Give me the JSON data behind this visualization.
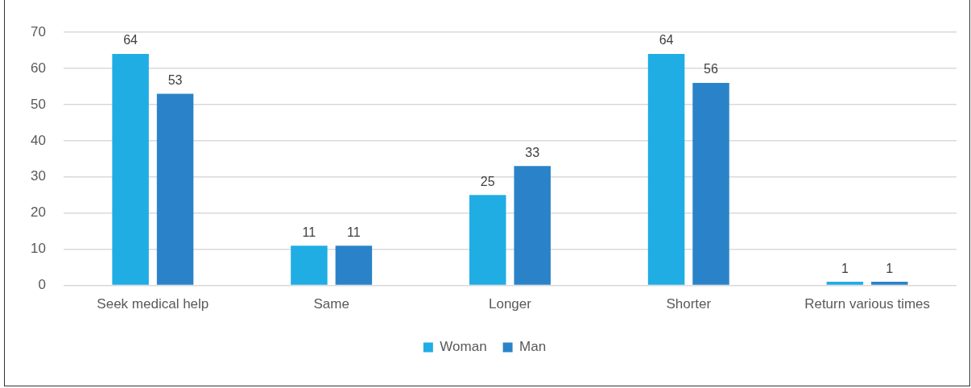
{
  "chart_data": {
    "type": "bar",
    "categories": [
      "Seek medical help",
      "Same",
      "Longer",
      "Shorter",
      "Return various times"
    ],
    "series": [
      {
        "name": "Woman",
        "color": "#1fade4",
        "values": [
          64,
          11,
          25,
          64,
          1
        ]
      },
      {
        "name": "Man",
        "color": "#2a83c8",
        "values": [
          53,
          11,
          33,
          56,
          1
        ]
      }
    ],
    "ylim": [
      0,
      70
    ],
    "yticks": [
      0,
      10,
      20,
      30,
      40,
      50,
      60,
      70
    ],
    "grid": "y",
    "legend": "bottom",
    "data_labels": true
  }
}
